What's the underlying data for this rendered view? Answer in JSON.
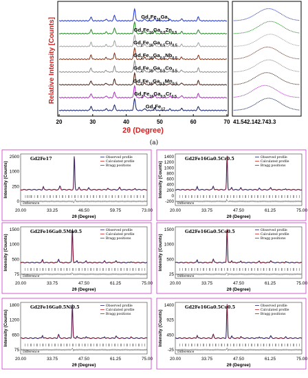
{
  "caption_a": "(a)",
  "chart_data": [
    {
      "type": "line",
      "ylabel": "Relative Intensity [Counts]",
      "xlabel": "2θ (Degree)",
      "xlim": [
        20,
        70
      ],
      "x_ticks": [
        "20",
        "30",
        "40",
        "50",
        "60",
        "70"
      ],
      "zoom_x_ticks": [
        "41.5",
        "42.1",
        "42.7",
        "43.3"
      ],
      "zoom_xlim": [
        41.5,
        43.3
      ],
      "peaks_2theta": [
        29.5,
        36.5,
        42.5,
        48.5,
        56.5,
        61.5
      ],
      "series": [
        {
          "name": "Gd2Fe16Ga1",
          "color": "#1a2fd8",
          "zoom_peak": 42.45
        },
        {
          "name": "Gd2Fe16Ga0.5Zn0.5",
          "color": "#1c8a1c",
          "zoom_peak": 42.5
        },
        {
          "name": "Gd2Fe16Ga0.5Cu0.5",
          "color": "#a0a0a0",
          "zoom_peak": 42.5
        },
        {
          "name": "Gd2Fe16Ga0.5Nb0.5",
          "color": "#8a2a0a",
          "zoom_peak": 42.42
        },
        {
          "name": "Gd2Fe16Ga0.5Co0.5",
          "color": "#8a8a8a",
          "zoom_peak": 42.45
        },
        {
          "name": "Gd2Fe16Ga0.5Mn0.5",
          "color": "#4a1a0a",
          "zoom_peak": 42.4
        },
        {
          "name": "Gd2Fe16Ga0.5Cr0.5",
          "color": "#b026c8",
          "zoom_peak": 42.35
        },
        {
          "name": "Gd2Fe17",
          "color": "#0c1a6a",
          "zoom_peak": 42.45
        }
      ],
      "series_labels": [
        {
          "base": "Gd",
          "sub1": "2",
          "mid1": "Fe",
          "sub2": "16",
          "mid2": "Ga",
          "sub3": "1",
          "mid3": "",
          "sub4": ""
        },
        {
          "base": "Gd",
          "sub1": "2",
          "mid1": "Fe",
          "sub2": "16",
          "mid2": "Ga",
          "sub3": "0.5",
          "mid3": "Zn",
          "sub4": "0.5"
        },
        {
          "base": "Gd",
          "sub1": "2",
          "mid1": "Fe",
          "sub2": "16",
          "mid2": "Ga",
          "sub3": "0.5",
          "mid3": "Cu",
          "sub4": "0.5"
        },
        {
          "base": "Gd",
          "sub1": "2",
          "mid1": "Fe",
          "sub2": "16",
          "mid2": "Ga",
          "sub3": "0.5",
          "mid3": "Nb",
          "sub4": "0.5"
        },
        {
          "base": "Gd",
          "sub1": "2",
          "mid1": "Fe",
          "sub2": "16",
          "mid2": "Ga",
          "sub3": "0.5",
          "mid3": "Co",
          "sub4": "0.5"
        },
        {
          "base": "Gd",
          "sub1": "2",
          "mid1": "Fe",
          "sub2": "16",
          "mid2": "Ga",
          "sub3": "0.5",
          "mid3": "Mn",
          "sub4": "0.5"
        },
        {
          "base": "Gd",
          "sub1": "2",
          "mid1": "Fe",
          "sub2": "16",
          "mid2": "Ga",
          "sub3": "0.5",
          "mid3": "Cr",
          "sub4": "0.5"
        },
        {
          "base": "Gd",
          "sub1": "2",
          "mid1": "Fe",
          "sub2": "17",
          "mid2": "",
          "sub3": "",
          "mid3": "",
          "sub4": ""
        }
      ]
    },
    {
      "type": "line",
      "panels": [
        {
          "name": "Gd2Fe17",
          "ylabel": "Intensity (Counts)",
          "xlabel": "2θ (Degree)",
          "y_ticks": [
            "2500",
            "1000",
            "250",
            "0"
          ],
          "x_ticks": [
            "20.00",
            "33.25",
            "46.50",
            "59.75",
            "73.00"
          ],
          "xlim": [
            20,
            73
          ],
          "ylim": [
            0,
            2500
          ],
          "main_peak": 42.5,
          "legend": [
            "Observed profile",
            "Calculated profile",
            "Bragg positions"
          ],
          "diff_label": "Difference"
        },
        {
          "name": "Gd2Fe16Ga0.5Cr0.5",
          "ylabel": "Intensity (Counts)",
          "xlabel": "2θ (Degree)",
          "y_ticks": [
            "1400",
            "1200",
            "1000",
            "800",
            "600",
            "400",
            "200",
            "0",
            "-200"
          ],
          "x_ticks": [
            "20.00",
            "33.75",
            "47.50",
            "61.25",
            "75.00"
          ],
          "xlim": [
            20,
            75
          ],
          "ylim": [
            -200,
            1400
          ],
          "main_peak": 42.5,
          "legend": [
            "Observed profile",
            "Calculated profile",
            "Bragg positions"
          ],
          "diff_label": "Difference"
        },
        {
          "name": "Gd2Fe16Ga0.5Mn0.5",
          "ylabel": "Intensity (Counts)",
          "xlabel": "2θ (Degree)",
          "y_ticks": [
            "1500",
            "1000",
            "500",
            "75"
          ],
          "x_ticks": [
            "20.00",
            "33.75",
            "47.50",
            "61.25",
            "75.00"
          ],
          "xlim": [
            20,
            75
          ],
          "ylim": [
            0,
            1500
          ],
          "main_peak": 42.5,
          "legend": [
            "Observed profile",
            "Calculated profile",
            "Bragg positions"
          ],
          "diff_label": "Difference"
        },
        {
          "name": "Gd2Fe16Ga0.5Co0.5",
          "ylabel": "Intensity (Counts)",
          "xlabel": "2θ (Degree)",
          "y_ticks": [
            "1500",
            "1000",
            "500",
            "25"
          ],
          "x_ticks": [
            "20.00",
            "33.75",
            "47.50",
            "61.25",
            "75.00"
          ],
          "xlim": [
            20,
            75
          ],
          "ylim": [
            0,
            1500
          ],
          "main_peak": 42.5,
          "legend": [
            "Observed profile",
            "Calculated profile",
            "Bragg positions"
          ],
          "diff_label": "Difference"
        },
        {
          "name": "Gd2Fe16Ga0.5Ni0.5",
          "ylabel": "Intensity (Counts)",
          "xlabel": "2θ (Degree)",
          "y_ticks": [
            "1800",
            "1200",
            "650",
            "75"
          ],
          "x_ticks": [
            "20.00",
            "33.75",
            "47.50",
            "61.25",
            "75.00"
          ],
          "xlim": [
            20,
            75
          ],
          "ylim": [
            0,
            1800
          ],
          "main_peak": 42.5,
          "legend": [
            "Observed profile",
            "Calculated profile",
            "Bragg positions"
          ],
          "diff_label": "Difference"
        },
        {
          "name": "Gd2Fe16Ga0.5Cu0.5",
          "ylabel": "Intensity (Counts)",
          "xlabel": "2θ (Degree)",
          "y_ticks": [
            "1400",
            "925",
            "450",
            "-25"
          ],
          "x_ticks": [
            "20.00",
            "33.75",
            "47.50",
            "61.25",
            "75.00"
          ],
          "xlim": [
            20,
            75
          ],
          "ylim": [
            -25,
            1400
          ],
          "main_peak": 42.5,
          "legend": [
            "Observed profile",
            "Calculated profile",
            "Bragg positions"
          ],
          "diff_label": "Difference"
        }
      ]
    }
  ]
}
